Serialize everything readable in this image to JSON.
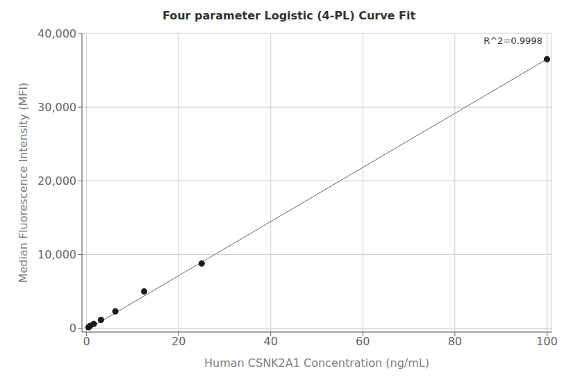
{
  "chart_data": {
    "type": "scatter",
    "title": "Four parameter Logistic (4-PL) Curve Fit",
    "x_label": "Human CSNK2A1 Concentration (ng/mL)",
    "y_label": "Median Fluorescence Intensity (MFI)",
    "series": [
      {
        "type": "line",
        "color": "#666666",
        "x": [
          0,
          100
        ],
        "values": [
          -200,
          36500
        ]
      },
      {
        "type": "scatter",
        "color": "#1a1a1a",
        "x": [
          0.4,
          0.78,
          1.56,
          3.125,
          6.25,
          12.5,
          25,
          100
        ],
        "values": [
          150,
          350,
          600,
          1150,
          2300,
          5000,
          8800,
          36500
        ]
      }
    ],
    "xlim": [
      -1,
      101
    ],
    "ylim": [
      -500,
      40000
    ],
    "xticks": [
      0,
      20,
      40,
      60,
      80,
      100
    ],
    "yticks": [
      0,
      {
        "value": 10000,
        "label": "10,000"
      },
      {
        "value": 20000,
        "label": "20,000"
      },
      {
        "value": 30000,
        "label": "30,000"
      },
      {
        "value": 40000,
        "label": "40,000"
      }
    ],
    "annotations": [
      {
        "text": "R^2=0.9998",
        "x": 99,
        "y": 38200
      }
    ],
    "grid": true
  }
}
